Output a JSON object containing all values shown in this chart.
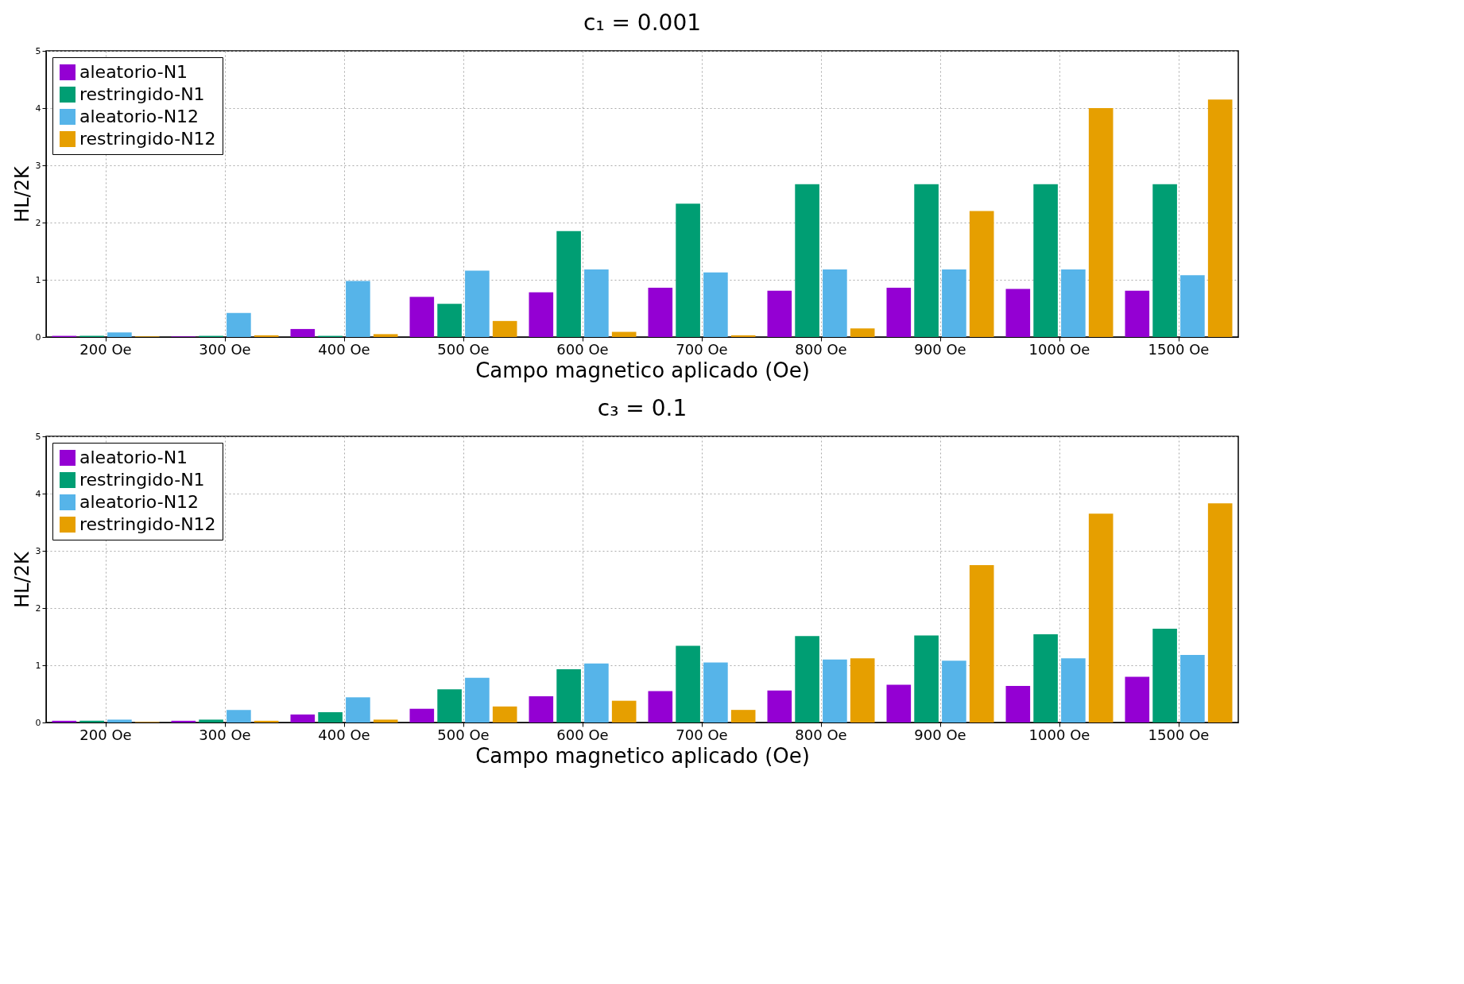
{
  "chart_data": [
    {
      "type": "bar",
      "title": "c₁ = 0.001",
      "xlabel": "Campo magnetico aplicado (Oe)",
      "ylabel": "HL/2K",
      "categories": [
        "200 Oe",
        "300 Oe",
        "400 Oe",
        "500 Oe",
        "600 Oe",
        "700 Oe",
        "800 Oe",
        "900 Oe",
        "1000 Oe",
        "1500 Oe"
      ],
      "series": [
        {
          "name": "aleatorio-N1",
          "color": "#9400d3",
          "values": [
            0.02,
            0.01,
            0.14,
            0.7,
            0.78,
            0.86,
            0.81,
            0.86,
            0.84,
            0.81
          ]
        },
        {
          "name": "restringido-N1",
          "color": "#009e73",
          "values": [
            0.02,
            0.02,
            0.02,
            0.58,
            1.85,
            2.33,
            2.67,
            2.67,
            2.67,
            2.67
          ]
        },
        {
          "name": "aleatorio-N12",
          "color": "#56b4e9",
          "values": [
            0.08,
            0.42,
            0.98,
            1.16,
            1.18,
            1.13,
            1.18,
            1.18,
            1.18,
            1.08
          ]
        },
        {
          "name": "restringido-N12",
          "color": "#e69f00",
          "values": [
            0.01,
            0.03,
            0.05,
            0.28,
            0.09,
            0.03,
            0.15,
            2.2,
            4.0,
            4.15
          ]
        }
      ],
      "ylim": [
        0,
        5
      ],
      "yticks": [
        0,
        1,
        2,
        3,
        4,
        5
      ],
      "grid": true,
      "legend": "top left"
    },
    {
      "type": "bar",
      "title": "c₃ = 0.1",
      "xlabel": "Campo magnetico aplicado (Oe)",
      "ylabel": "HL/2K",
      "categories": [
        "200 Oe",
        "300 Oe",
        "400 Oe",
        "500 Oe",
        "600 Oe",
        "700 Oe",
        "800 Oe",
        "900 Oe",
        "1000 Oe",
        "1500 Oe"
      ],
      "series": [
        {
          "name": "aleatorio-N1",
          "color": "#9400d3",
          "values": [
            0.03,
            0.03,
            0.14,
            0.24,
            0.46,
            0.55,
            0.56,
            0.66,
            0.64,
            0.8
          ]
        },
        {
          "name": "restringido-N1",
          "color": "#009e73",
          "values": [
            0.03,
            0.05,
            0.18,
            0.58,
            0.93,
            1.34,
            1.51,
            1.52,
            1.54,
            1.64
          ]
        },
        {
          "name": "aleatorio-N12",
          "color": "#56b4e9",
          "values": [
            0.05,
            0.22,
            0.44,
            0.78,
            1.03,
            1.05,
            1.1,
            1.08,
            1.12,
            1.18
          ]
        },
        {
          "name": "restringido-N12",
          "color": "#e69f00",
          "values": [
            0.01,
            0.03,
            0.05,
            0.28,
            0.38,
            0.22,
            1.12,
            2.75,
            3.65,
            3.83
          ]
        }
      ],
      "ylim": [
        0,
        5
      ],
      "yticks": [
        0,
        1,
        2,
        3,
        4,
        5
      ],
      "grid": true,
      "legend": "top left"
    }
  ]
}
